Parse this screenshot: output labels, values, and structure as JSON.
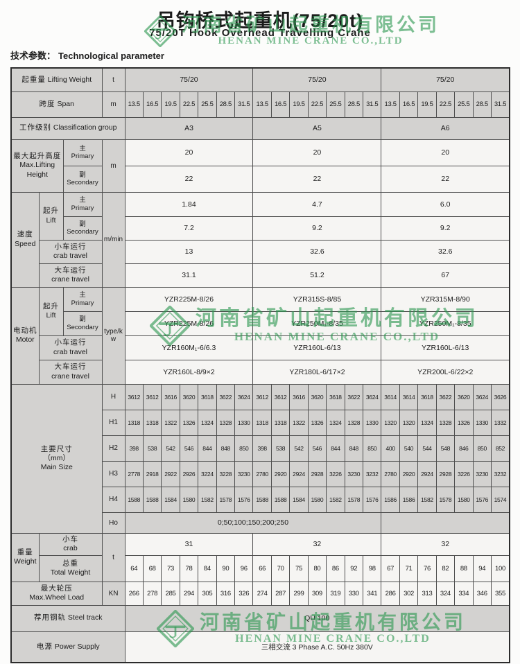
{
  "page": {
    "title_zh": "吊钩桥式起重机(75/20t)",
    "title_en": "75/20T  Hook  Overhead  Travelling  Crane",
    "param_zh": "技术参数：",
    "param_en": "Technological  parameter"
  },
  "watermark": {
    "zh": "河南省矿山起重机有限公司",
    "en": "HENAN MINE CRANE CO.,LTD",
    "color": "#2d9850"
  },
  "colors": {
    "table_gray": "#d3d2d0",
    "cell_white": "#f6f5f3"
  },
  "rows": {
    "lifting_weight": {
      "zh": "起重量",
      "en": "Lifting Weight",
      "unit": "t",
      "values": [
        "75/20",
        "75/20",
        "75/20"
      ]
    },
    "span": {
      "zh": "跨度",
      "en": "Span",
      "unit": "m",
      "values": [
        "13.5",
        "16.5",
        "19.5",
        "22.5",
        "25.5",
        "28.5",
        "31.5"
      ]
    },
    "classification": {
      "zh": "工作级别",
      "en": "Classification group",
      "values": [
        "A3",
        "A5",
        "A6"
      ]
    },
    "height": {
      "zh": "最大起升高度",
      "en": "Max.Lifting Height",
      "unit": "m",
      "primary": {
        "zh": "主",
        "en": "Primary",
        "values": [
          "20",
          "20",
          "20"
        ]
      },
      "secondary": {
        "zh": "副",
        "en": "Secondary",
        "values": [
          "22",
          "22",
          "22"
        ]
      }
    },
    "speed": {
      "zh": "速度",
      "en": "Speed",
      "unit": "m/min",
      "lift": {
        "zh": "起升",
        "en": "Lift"
      },
      "lift_primary": {
        "zh": "主",
        "en": "Primary",
        "values": [
          "1.84",
          "4.7",
          "6.0"
        ]
      },
      "lift_secondary": {
        "zh": "副",
        "en": "Secondary",
        "values": [
          "7.2",
          "9.2",
          "9.2"
        ]
      },
      "crab": {
        "zh": "小车运行",
        "en": "crab travel",
        "values": [
          "13",
          "32.6",
          "32.6"
        ]
      },
      "crane": {
        "zh": "大车运行",
        "en": "crane travel",
        "values": [
          "31.1",
          "51.2",
          "67"
        ]
      }
    },
    "motor": {
      "zh": "电动机",
      "en": "Motor",
      "unit": "type/kw",
      "lift": {
        "zh": "起升",
        "en": "Lift"
      },
      "lift_primary": {
        "zh": "主",
        "en": "Primary",
        "values": [
          "YZR225M-8/26",
          "YZR315S-8/85",
          "YZR315M-8/90"
        ]
      },
      "lift_secondary": {
        "zh": "副",
        "en": "Secondary",
        "values": [
          "YZR225M-8/26",
          "YZR250M₁-8/35",
          "YZR250M₁-8/35"
        ]
      },
      "crab": {
        "zh": "小车运行",
        "en": "crab travel",
        "values": [
          "YZR160M₁-6/6.3",
          "YZR160L-6/13",
          "YZR160L-6/13"
        ]
      },
      "crane": {
        "zh": "大车运行",
        "en": "crane travel",
        "values": [
          "YZR160L-8/9×2",
          "YZR180L-6/17×2",
          "YZR200L-6/22×2"
        ]
      }
    },
    "main_size": {
      "zh": "主要尺寸",
      "mm": "（mm）",
      "en": "Main Size",
      "H_label": "H",
      "H1_label": "H1",
      "H2_label": "H2",
      "H3_label": "H3",
      "H4_label": "H4",
      "Ho_label": "Ho",
      "H": [
        3612,
        3612,
        3616,
        3620,
        3618,
        3622,
        3624,
        3612,
        3612,
        3616,
        3620,
        3618,
        3622,
        3624,
        3614,
        3614,
        3618,
        3622,
        3620,
        3624,
        3626
      ],
      "H1": [
        1318,
        1318,
        1322,
        1326,
        1324,
        1328,
        1330,
        1318,
        1318,
        1322,
        1326,
        1324,
        1328,
        1330,
        1320,
        1320,
        1324,
        1328,
        1326,
        1330,
        1332
      ],
      "H2": [
        398,
        538,
        542,
        546,
        844,
        848,
        850,
        398,
        538,
        542,
        546,
        844,
        848,
        850,
        400,
        540,
        544,
        548,
        846,
        850,
        852
      ],
      "H3": [
        2778,
        2918,
        2922,
        2926,
        3224,
        3228,
        3230,
        2780,
        2920,
        2924,
        2928,
        3226,
        3230,
        3232,
        2780,
        2920,
        2924,
        2928,
        3226,
        3230,
        3232
      ],
      "H4": [
        1588,
        1588,
        1584,
        1580,
        1582,
        1578,
        1576,
        1588,
        1588,
        1584,
        1580,
        1582,
        1578,
        1576,
        1586,
        1586,
        1582,
        1578,
        1580,
        1576,
        1574
      ],
      "Ho_value": "0;50;100;150;200;250"
    },
    "weight": {
      "zh": "重量",
      "en": "Weight",
      "unit": "t",
      "crab": {
        "zh": "小车",
        "en": "crab",
        "values": [
          "31",
          "32",
          "32"
        ]
      },
      "total": {
        "zh": "总重",
        "en": "Total Weight",
        "values": [
          64,
          68,
          73,
          78,
          84,
          90,
          96,
          66,
          70,
          75,
          80,
          86,
          92,
          98,
          67,
          71,
          76,
          82,
          88,
          94,
          100
        ]
      }
    },
    "wheel_load": {
      "zh": "最大轮压",
      "en": "Max.Wheel Load",
      "unit": "KN",
      "values": [
        266,
        278,
        285,
        294,
        305,
        316,
        326,
        274,
        287,
        299,
        309,
        319,
        330,
        341,
        286,
        302,
        313,
        324,
        334,
        346,
        355
      ]
    },
    "steel_track": {
      "zh": "荐用钢轨",
      "en": "Steel track",
      "value": "QU  100"
    },
    "power": {
      "zh": "电源",
      "en": "Power Supply",
      "value": "三相交流 3  Phase A.C.  50Hz  380V"
    }
  }
}
